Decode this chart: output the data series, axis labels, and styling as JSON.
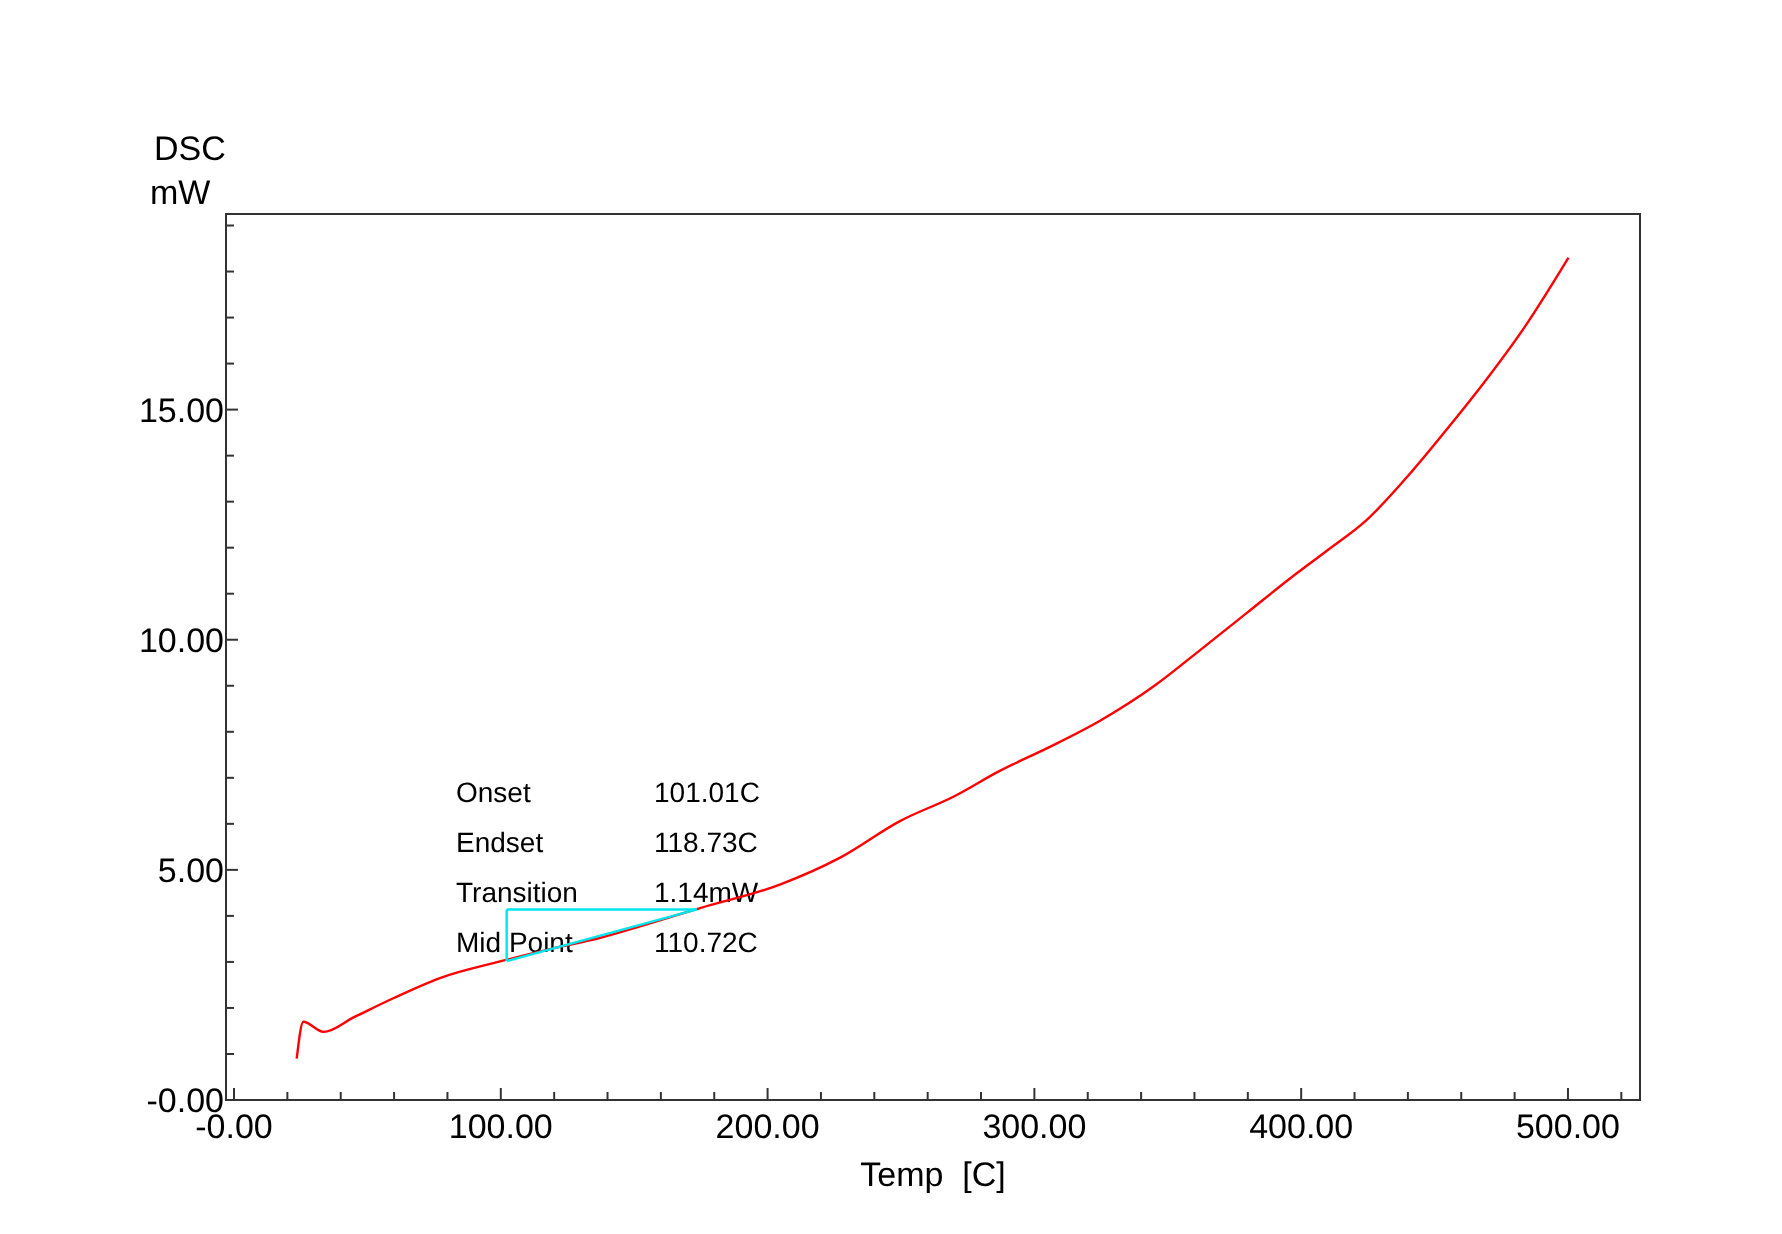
{
  "chart_data": {
    "type": "line",
    "xlabel": "Temp  [C]",
    "ylabel": "DSC\nmW",
    "xlim": [
      -3,
      527
    ],
    "ylim": [
      0,
      19.25
    ],
    "xticks": [
      {
        "value": 0,
        "label": "-0.00"
      },
      {
        "value": 20,
        "label": null
      },
      {
        "value": 40,
        "label": null
      },
      {
        "value": 60,
        "label": null
      },
      {
        "value": 80,
        "label": null
      },
      {
        "value": 100,
        "label": "100.00"
      },
      {
        "value": 120,
        "label": null
      },
      {
        "value": 140,
        "label": null
      },
      {
        "value": 160,
        "label": null
      },
      {
        "value": 180,
        "label": null
      },
      {
        "value": 200,
        "label": "200.00"
      },
      {
        "value": 220,
        "label": null
      },
      {
        "value": 240,
        "label": null
      },
      {
        "value": 260,
        "label": null
      },
      {
        "value": 280,
        "label": null
      },
      {
        "value": 300,
        "label": "300.00"
      },
      {
        "value": 320,
        "label": null
      },
      {
        "value": 340,
        "label": null
      },
      {
        "value": 360,
        "label": null
      },
      {
        "value": 380,
        "label": null
      },
      {
        "value": 400,
        "label": "400.00"
      },
      {
        "value": 420,
        "label": null
      },
      {
        "value": 440,
        "label": null
      },
      {
        "value": 460,
        "label": null
      },
      {
        "value": 480,
        "label": null
      },
      {
        "value": 500,
        "label": "500.00"
      },
      {
        "value": 520,
        "label": null
      }
    ],
    "yticks": [
      {
        "value": 0,
        "label": "-0.00"
      },
      {
        "value": 1,
        "label": null
      },
      {
        "value": 2,
        "label": null
      },
      {
        "value": 3,
        "label": null
      },
      {
        "value": 4,
        "label": null
      },
      {
        "value": 5,
        "label": "5.00"
      },
      {
        "value": 6,
        "label": null
      },
      {
        "value": 7,
        "label": null
      },
      {
        "value": 8,
        "label": null
      },
      {
        "value": 9,
        "label": null
      },
      {
        "value": 10,
        "label": "10.00"
      },
      {
        "value": 11,
        "label": null
      },
      {
        "value": 12,
        "label": null
      },
      {
        "value": 13,
        "label": null
      },
      {
        "value": 14,
        "label": null
      },
      {
        "value": 15,
        "label": "15.00"
      },
      {
        "value": 16,
        "label": null
      },
      {
        "value": 17,
        "label": null
      },
      {
        "value": 18,
        "label": null
      },
      {
        "value": 19,
        "label": null
      }
    ],
    "grid": false,
    "series": [
      {
        "color": "#ff0000",
        "x": [
          23.5,
          26,
          33.5,
          45,
          59.7,
          77.2,
          99.7,
          120,
          137,
          155,
          174.7,
          204.6,
          227,
          249.6,
          270,
          287,
          305,
          324.6,
          345,
          362,
          380,
          395.8,
          410,
          424.5,
          442,
          455,
          469.5,
          485,
          500.2
        ],
        "values": [
          0.9,
          1.7,
          1.48,
          1.8,
          2.21,
          2.65,
          3.01,
          3.3,
          3.52,
          3.82,
          4.17,
          4.68,
          5.26,
          6.06,
          6.6,
          7.15,
          7.65,
          8.24,
          9.0,
          9.77,
          10.6,
          11.33,
          11.95,
          12.6,
          13.69,
          14.6,
          15.66,
          16.9,
          18.3
        ]
      },
      {
        "color": "#00e5ee",
        "x": [
          102.2,
          173.5
        ],
        "values": [
          4.14,
          4.14
        ]
      },
      {
        "color": "#00e5ee",
        "x": [
          102.2,
          102.2
        ],
        "values": [
          3.02,
          4.14
        ]
      },
      {
        "color": "#00e5ee",
        "x": [
          102.2,
          173.5
        ],
        "values": [
          3.02,
          4.14
        ]
      }
    ],
    "annotations": [
      "Onset",
      "101.01C",
      "Endset",
      "118.73C",
      "Transition",
      "1.14mW",
      "Mid Point",
      "110.72C"
    ]
  }
}
